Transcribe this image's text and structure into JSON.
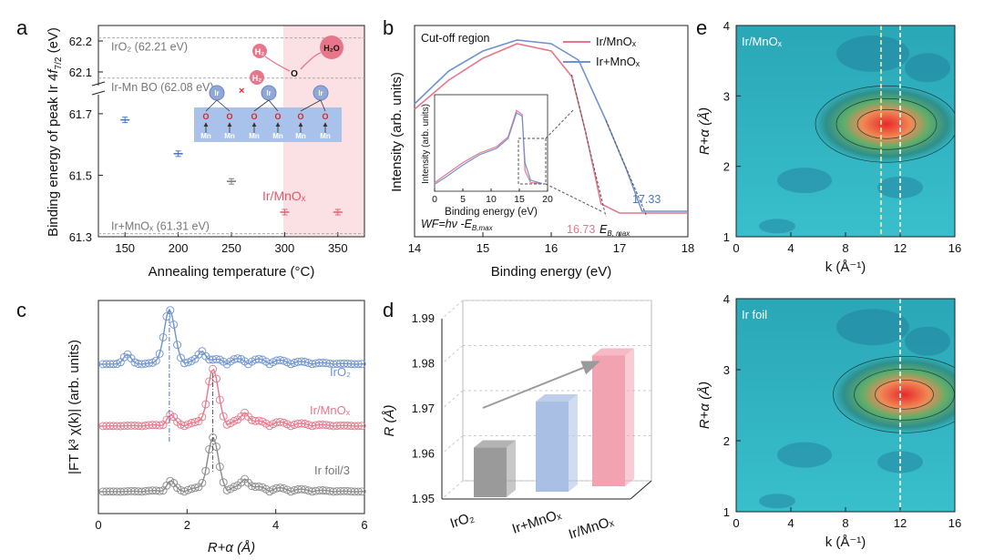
{
  "panel_labels": {
    "a": "a",
    "b": "b",
    "c": "c",
    "d": "d",
    "e": "e"
  },
  "chart_data": [
    {
      "panel": "a",
      "type": "scatter",
      "xlabel": "Annealing temperature (°C)",
      "ylabel_main": "Binding energy of peak Ir 4",
      "ylabel_f": "f",
      "ylabel_sub": "7/2",
      "ylabel_unit": " (eV)",
      "xlim": [
        125,
        375
      ],
      "xticks": [
        "150",
        "200",
        "250",
        "300",
        "350"
      ],
      "ylim_lower": [
        61.3,
        61.75
      ],
      "ylim_upper": [
        62.05,
        62.25
      ],
      "yticks_lower": [
        "61.3",
        "61.5",
        "61.7"
      ],
      "yticks_upper": [
        "62.1",
        "62.2"
      ],
      "x": [
        150,
        200,
        250,
        300,
        350
      ],
      "y": [
        61.68,
        61.57,
        61.48,
        61.38,
        61.38
      ],
      "point_colors": [
        "#4a78c3",
        "#4a78c3",
        "#7f7f7f",
        "#e46474",
        "#e46474"
      ],
      "shaded_region": [
        300,
        375
      ],
      "reference_lines": [
        {
          "value": 62.21,
          "label": "IrO₂ (62.21 eV)"
        },
        {
          "value": 62.08,
          "label": "Ir-Mn BO (62.08 eV)"
        },
        {
          "value": 61.31,
          "label": "Ir+MnOₓ (61.31 eV)"
        }
      ],
      "sample_label": "Ir/MnOₓ",
      "inset": {
        "h2_label": "H₂",
        "h2o_label": "H₂O",
        "o_label": "O",
        "ir_label": "Ir",
        "o_atom": "O",
        "mn_atom": "Mn"
      }
    },
    {
      "panel": "b",
      "type": "line",
      "xlabel": "Binding energy (eV)",
      "ylabel": "Intensity (arb. units)",
      "xlim": [
        14,
        18
      ],
      "xticks": [
        "14",
        "15",
        "16",
        "17",
        "18"
      ],
      "annotation_title": "Cut-off region",
      "formula": "WF=hν -E",
      "formula_sub": "B,max",
      "ebmax_label": "E",
      "ebmax_sub": "B, max",
      "series": [
        {
          "name": "Ir/MnOₓ",
          "color": "#e8768a",
          "cutoff": 16.73,
          "x": [
            14.0,
            14.5,
            15.0,
            15.5,
            16.0,
            16.3,
            16.5,
            16.73,
            17.0,
            18.0
          ],
          "y": [
            0.62,
            0.78,
            0.9,
            0.98,
            0.94,
            0.8,
            0.5,
            0.1,
            0.05,
            0.05
          ]
        },
        {
          "name": "Ir+MnOₓ",
          "color": "#6f93cf",
          "cutoff": 17.33,
          "x": [
            14.0,
            14.5,
            15.0,
            15.5,
            16.0,
            16.4,
            16.8,
            17.1,
            17.33,
            18.0
          ],
          "y": [
            0.64,
            0.82,
            0.93,
            0.99,
            0.97,
            0.88,
            0.55,
            0.28,
            0.05,
            0.05
          ]
        }
      ],
      "cutoff_labels": [
        "16.73",
        "17.33"
      ],
      "inset": {
        "xlabel": "Binding energy (eV)",
        "ylabel": "Intensity (arb. units)",
        "xticks": [
          "0",
          "5",
          "10",
          "15",
          "20"
        ],
        "xlim": [
          0,
          20
        ]
      }
    },
    {
      "panel": "c",
      "type": "line",
      "xlabel": "R+α (Å)",
      "ylabel": "|FT k³ χ(k)| (arb. units)",
      "xlim": [
        0,
        6
      ],
      "xticks": [
        "0",
        "2",
        "4",
        "6"
      ],
      "series": [
        {
          "name": "IrO₂",
          "color": "#6f93cf",
          "peak": 1.6
        },
        {
          "name": "Ir/MnOₓ",
          "color": "#e8768a",
          "peak": 2.58
        },
        {
          "name": "Ir foil/3",
          "color": "#8a8a8a",
          "peak": 2.58
        }
      ]
    },
    {
      "panel": "d",
      "type": "bar",
      "ylabel": "R (Å)",
      "categories": [
        "IrO₂",
        "Ir+MnOₓ",
        "Ir/MnOₓ"
      ],
      "values": [
        1.961,
        1.97,
        1.979
      ],
      "colors": [
        "#9a9a9a",
        "#a9bfe4",
        "#f2a3b2"
      ],
      "ylim": [
        1.95,
        1.99
      ],
      "yticks": [
        "1.95",
        "1.96",
        "1.97",
        "1.98",
        "1.99"
      ]
    },
    {
      "panel": "e",
      "type": "heatmap",
      "xlabel": "k (Å⁻¹)",
      "ylabel": "R+α (Å)",
      "xticks": [
        "0",
        "4",
        "8",
        "12",
        "16"
      ],
      "yticks": [
        "1",
        "2",
        "3",
        "4"
      ],
      "maps": [
        {
          "title": "Ir/MnOₓ",
          "hotspot_k": 11.0,
          "hotspot_r": 2.6,
          "dashed_k": [
            10.6,
            12.0
          ]
        },
        {
          "title": "Ir foil",
          "hotspot_k": 12.3,
          "hotspot_r": 2.65,
          "dashed_k": [
            12.0
          ]
        }
      ]
    }
  ]
}
